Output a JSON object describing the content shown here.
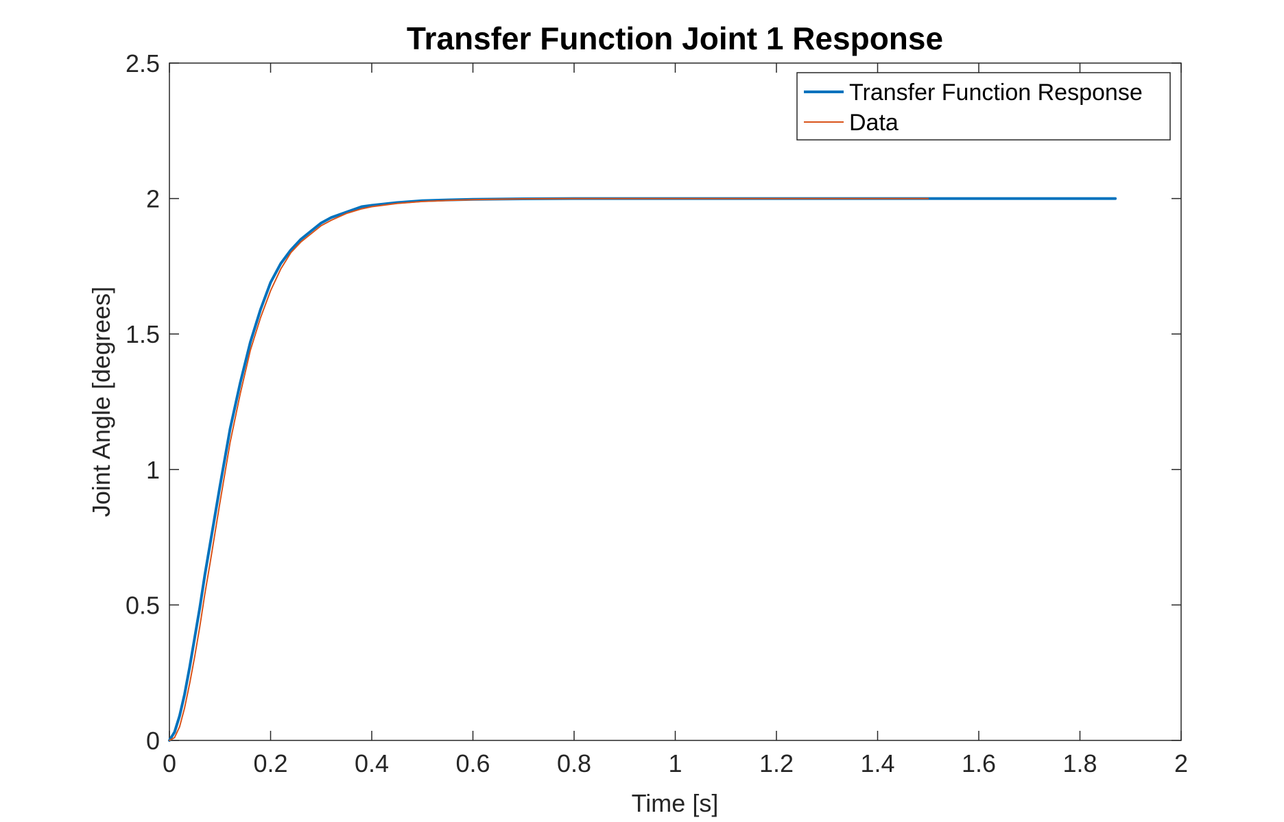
{
  "chart_data": {
    "type": "line",
    "title": "Transfer Function Joint 1 Response",
    "xlabel": "Time [s]",
    "ylabel": "Joint Angle [degrees]",
    "xlim": [
      0,
      2
    ],
    "ylim": [
      0,
      2.5
    ],
    "x_ticks": [
      0,
      0.2,
      0.4,
      0.6,
      0.8,
      1,
      1.2,
      1.4,
      1.6,
      1.8,
      2
    ],
    "x_tick_labels": [
      "0",
      "0.2",
      "0.4",
      "0.6",
      "0.8",
      "1",
      "1.2",
      "1.4",
      "1.6",
      "1.8",
      "2"
    ],
    "y_ticks": [
      0,
      0.5,
      1,
      1.5,
      2,
      2.5
    ],
    "y_tick_labels": [
      "0",
      "0.5",
      "1",
      "1.5",
      "2",
      "2.5"
    ],
    "grid": false,
    "legend_position": "top-right",
    "series": [
      {
        "name": "Transfer Function Response",
        "color": "#0072BD",
        "x": [
          0,
          0.01,
          0.02,
          0.03,
          0.04,
          0.05,
          0.06,
          0.07,
          0.08,
          0.1,
          0.12,
          0.14,
          0.16,
          0.18,
          0.2,
          0.22,
          0.24,
          0.26,
          0.28,
          0.3,
          0.32,
          0.35,
          0.38,
          0.4,
          0.45,
          0.5,
          0.55,
          0.6,
          0.7,
          0.8,
          1.0,
          1.2,
          1.4,
          1.6,
          1.87
        ],
        "y": [
          0,
          0.03,
          0.09,
          0.17,
          0.27,
          0.38,
          0.49,
          0.61,
          0.72,
          0.94,
          1.15,
          1.32,
          1.47,
          1.59,
          1.69,
          1.76,
          1.81,
          1.85,
          1.88,
          1.91,
          1.93,
          1.95,
          1.97,
          1.975,
          1.985,
          1.992,
          1.995,
          1.997,
          1.999,
          2.0,
          2.0,
          2.0,
          2.0,
          2.0,
          2.0
        ]
      },
      {
        "name": "Data",
        "color": "#D95319",
        "x": [
          0,
          0.01,
          0.02,
          0.03,
          0.04,
          0.05,
          0.06,
          0.07,
          0.08,
          0.1,
          0.12,
          0.14,
          0.16,
          0.18,
          0.2,
          0.22,
          0.24,
          0.26,
          0.28,
          0.3,
          0.32,
          0.35,
          0.38,
          0.4,
          0.45,
          0.5,
          0.55,
          0.6,
          0.7,
          0.8,
          1.0,
          1.2,
          1.5
        ],
        "y": [
          0,
          0.01,
          0.05,
          0.12,
          0.21,
          0.31,
          0.42,
          0.54,
          0.65,
          0.88,
          1.1,
          1.28,
          1.44,
          1.56,
          1.66,
          1.74,
          1.8,
          1.84,
          1.87,
          1.9,
          1.92,
          1.945,
          1.962,
          1.97,
          1.982,
          1.989,
          1.993,
          1.996,
          1.999,
          2.0,
          2.0,
          2.0,
          2.0
        ]
      }
    ]
  }
}
